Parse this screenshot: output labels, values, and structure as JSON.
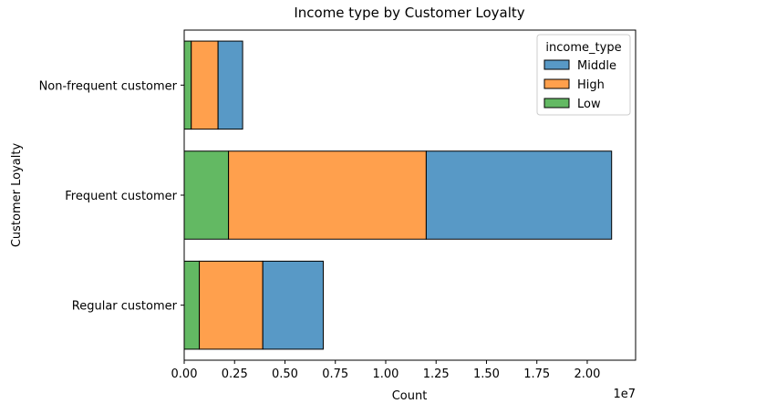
{
  "chart_data": {
    "type": "bar",
    "orientation": "horizontal",
    "stacked": true,
    "title": "Income type by Customer Loyalty",
    "xlabel": "Count",
    "ylabel": "Customer Loyalty",
    "x_offset_label": "1e7",
    "x_scale": 10000000,
    "xlim": [
      0,
      22400000
    ],
    "x_ticks": [
      0,
      2500000,
      5000000,
      7500000,
      10000000,
      12500000,
      15000000,
      17500000,
      20000000
    ],
    "x_tick_labels": [
      "0.00",
      "0.25",
      "0.50",
      "0.75",
      "1.00",
      "1.25",
      "1.50",
      "1.75",
      "2.00"
    ],
    "categories": [
      "Non-frequent customer",
      "Frequent customer",
      "Regular customer"
    ],
    "series": [
      {
        "name": "Low",
        "color": "#63b963",
        "values": [
          350000,
          2200000,
          750000
        ]
      },
      {
        "name": "High",
        "color": "#ffa04d",
        "values": [
          1330000,
          9810000,
          3150000
        ]
      },
      {
        "name": "Middle",
        "color": "#5899c6",
        "values": [
          1220000,
          9200000,
          3000000
        ]
      }
    ],
    "legend": {
      "title": "income_type",
      "placement": "top-right",
      "order": [
        "Middle",
        "High",
        "Low"
      ]
    },
    "grid": false
  }
}
